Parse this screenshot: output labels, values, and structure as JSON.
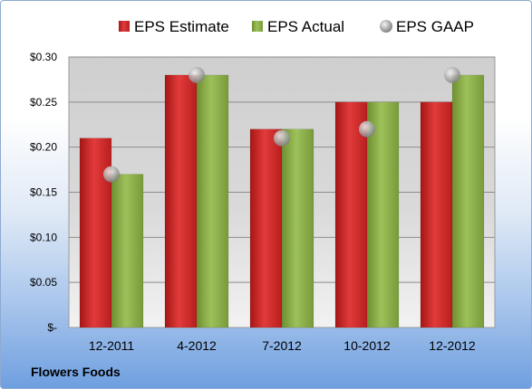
{
  "company": "Flowers Foods",
  "chart_data": {
    "type": "bar",
    "categories": [
      "12-2011",
      "4-2012",
      "7-2012",
      "10-2012",
      "12-2012"
    ],
    "series": [
      {
        "name": "EPS Estimate",
        "kind": "bar",
        "color": "#d42a2a",
        "values": [
          0.21,
          0.28,
          0.22,
          0.25,
          0.25
        ]
      },
      {
        "name": "EPS Actual",
        "kind": "bar",
        "color": "#8fb14a",
        "values": [
          0.17,
          0.28,
          0.22,
          0.25,
          0.28
        ]
      },
      {
        "name": "EPS GAAP",
        "kind": "marker",
        "color": "#a8a8a8",
        "values": [
          0.17,
          0.28,
          0.21,
          0.22,
          0.28
        ]
      }
    ],
    "ylim": [
      0,
      0.3
    ],
    "yticks": [
      0,
      0.05,
      0.1,
      0.15,
      0.2,
      0.25,
      0.3
    ],
    "ytick_labels": [
      "$-",
      "$0.05",
      "$0.10",
      "$0.15",
      "$0.20",
      "$0.25",
      "$0.30"
    ],
    "grid": true,
    "legend": "top"
  }
}
